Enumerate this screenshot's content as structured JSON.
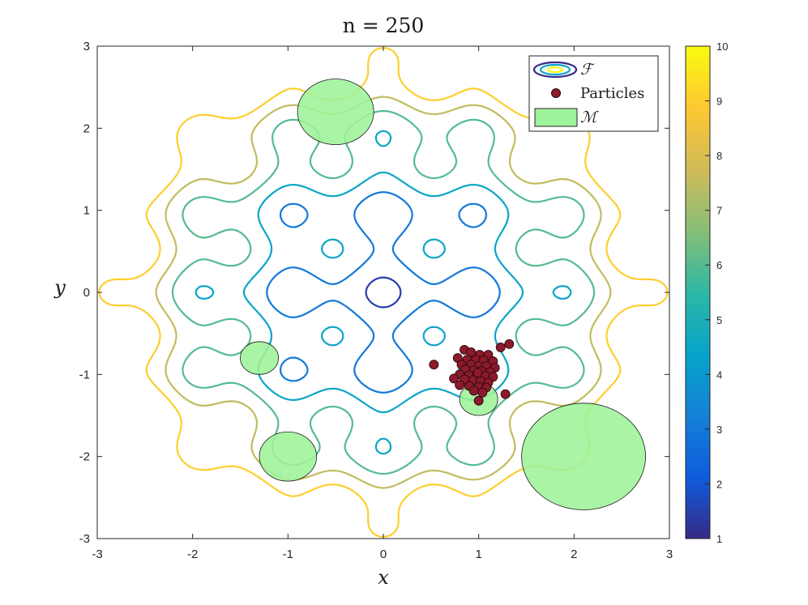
{
  "chart_data": {
    "type": "contour",
    "title": "n = 250",
    "xlabel": "x",
    "ylabel": "y",
    "xlim": [
      -3,
      3
    ],
    "ylim": [
      -3,
      3
    ],
    "xticks": [
      "-3",
      "-2",
      "-1",
      "0",
      "1",
      "2",
      "3"
    ],
    "yticks": [
      "-3",
      "-2",
      "-1",
      "0",
      "1",
      "2",
      "3"
    ],
    "grid": false,
    "colorbar": {
      "range": [
        1,
        10
      ],
      "ticks": [
        "1",
        "2",
        "3",
        "4",
        "5",
        "6",
        "7",
        "8",
        "9",
        "10"
      ],
      "colormap": "parula",
      "colors": [
        "#352a87",
        "#0f5cdd",
        "#1481d6",
        "#06a4ca",
        "#2eb7a4",
        "#87bf77",
        "#d1bb59",
        "#fec832",
        "#f9fb0e"
      ]
    },
    "contour_levels": [
      1.5,
      3,
      4.5,
      6,
      7.5,
      9
    ],
    "legend": {
      "position": "top-right",
      "entries": [
        {
          "label": "ℱ",
          "kind": "contour"
        },
        {
          "label": "Particles",
          "kind": "marker"
        },
        {
          "label": "ℳ",
          "kind": "region"
        }
      ]
    },
    "regions_M": [
      {
        "cx": -0.5,
        "cy": 2.2,
        "r": 0.4
      },
      {
        "cx": -1.3,
        "cy": -0.8,
        "r": 0.2
      },
      {
        "cx": -1.0,
        "cy": -2.0,
        "r": 0.3
      },
      {
        "cx": 1.0,
        "cy": -1.3,
        "r": 0.2
      },
      {
        "cx": 2.1,
        "cy": -2.0,
        "r": 0.65
      }
    ],
    "particles": {
      "count_label": "n = 250",
      "points": [
        [
          0.53,
          -0.88
        ],
        [
          1.32,
          -0.63
        ],
        [
          1.23,
          -0.67
        ],
        [
          0.85,
          -0.7
        ],
        [
          0.92,
          -0.73
        ],
        [
          1.01,
          -0.76
        ],
        [
          1.1,
          -0.76
        ],
        [
          0.78,
          -0.8
        ],
        [
          0.88,
          -0.82
        ],
        [
          0.97,
          -0.82
        ],
        [
          1.05,
          -0.83
        ],
        [
          1.15,
          -0.84
        ],
        [
          0.82,
          -0.88
        ],
        [
          0.92,
          -0.88
        ],
        [
          1.0,
          -0.9
        ],
        [
          1.08,
          -0.9
        ],
        [
          1.17,
          -0.92
        ],
        [
          0.86,
          -0.94
        ],
        [
          0.95,
          -0.95
        ],
        [
          1.03,
          -0.96
        ],
        [
          1.12,
          -0.97
        ],
        [
          0.8,
          -1.0
        ],
        [
          0.9,
          -1.01
        ],
        [
          0.98,
          -1.02
        ],
        [
          1.07,
          -1.02
        ],
        [
          1.15,
          -1.03
        ],
        [
          0.74,
          -1.05
        ],
        [
          0.85,
          -1.06
        ],
        [
          0.94,
          -1.07
        ],
        [
          1.02,
          -1.08
        ],
        [
          1.1,
          -1.1
        ],
        [
          0.8,
          -1.13
        ],
        [
          0.9,
          -1.14
        ],
        [
          1.0,
          -1.15
        ],
        [
          1.08,
          -1.16
        ],
        [
          0.95,
          -1.2
        ],
        [
          1.04,
          -1.22
        ],
        [
          1.28,
          -1.24
        ],
        [
          1.0,
          -1.32
        ],
        [
          0.99,
          -0.98
        ]
      ]
    }
  }
}
